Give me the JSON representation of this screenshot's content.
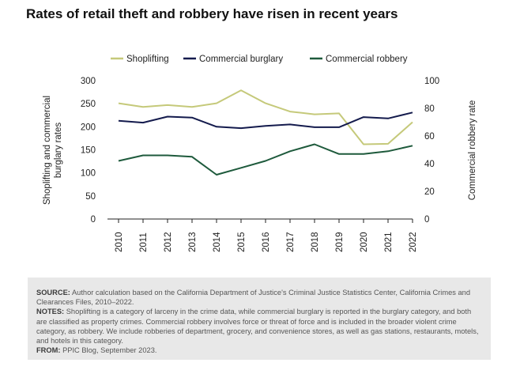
{
  "title": "Rates of retail theft and robbery have risen in recent years",
  "chart_data": {
    "type": "line",
    "x": [
      "2010",
      "2011",
      "2012",
      "2013",
      "2014",
      "2015",
      "2016",
      "2017",
      "2018",
      "2019",
      "2020",
      "2021",
      "2022"
    ],
    "series": [
      {
        "name": "Shoplifting",
        "axis": "left",
        "color": "#c5c97a",
        "values": [
          251,
          243,
          247,
          243,
          251,
          279,
          251,
          233,
          227,
          229,
          162,
          163,
          210
        ]
      },
      {
        "name": "Commercial burglary",
        "axis": "left",
        "color": "#141b4d",
        "values": [
          213,
          209,
          222,
          220,
          200,
          197,
          202,
          205,
          199,
          199,
          221,
          218,
          231
        ]
      },
      {
        "name": "Commercial robbery",
        "axis": "right",
        "color": "#1e5a3c",
        "values": [
          42,
          46,
          46,
          45,
          32,
          37,
          42,
          49,
          54,
          47,
          47,
          49,
          53
        ]
      }
    ],
    "ylabel_left": "Shoplifting and commercial burglary rates",
    "ylabel_left_lines": [
      "Shoplifting and commercial",
      "burglary rates"
    ],
    "ylabel_right": "Commercial robbery rate",
    "ylim_left": [
      0,
      300
    ],
    "yticks_left": [
      "0",
      "50",
      "100",
      "150",
      "200",
      "250",
      "300"
    ],
    "ylim_right": [
      0,
      100
    ],
    "yticks_right": [
      "0",
      "20",
      "40",
      "60",
      "80",
      "100"
    ],
    "legend_position": "top",
    "grid": false
  },
  "notes": {
    "source_label": "SOURCE:",
    "source_text": "Author calculation based on the California Department of Justice's Criminal Justice Statistics Center, California Crimes and Clearances Files, 2010–2022.",
    "notes_label": "NOTES:",
    "notes_text": "Shoplifting is a category of larceny in the crime data, while commercial burglary is reported in the burglary category, and both are classified as property crimes. Commercial robbery involves force or threat of force and is included in the broader violent crime category, as robbery. We include robberies of department, grocery, and convenience stores, as well as gas stations, restaurants, motels, and hotels in this category.",
    "from_label": "FROM:",
    "from_text": "PPIC Blog, September 2023."
  }
}
